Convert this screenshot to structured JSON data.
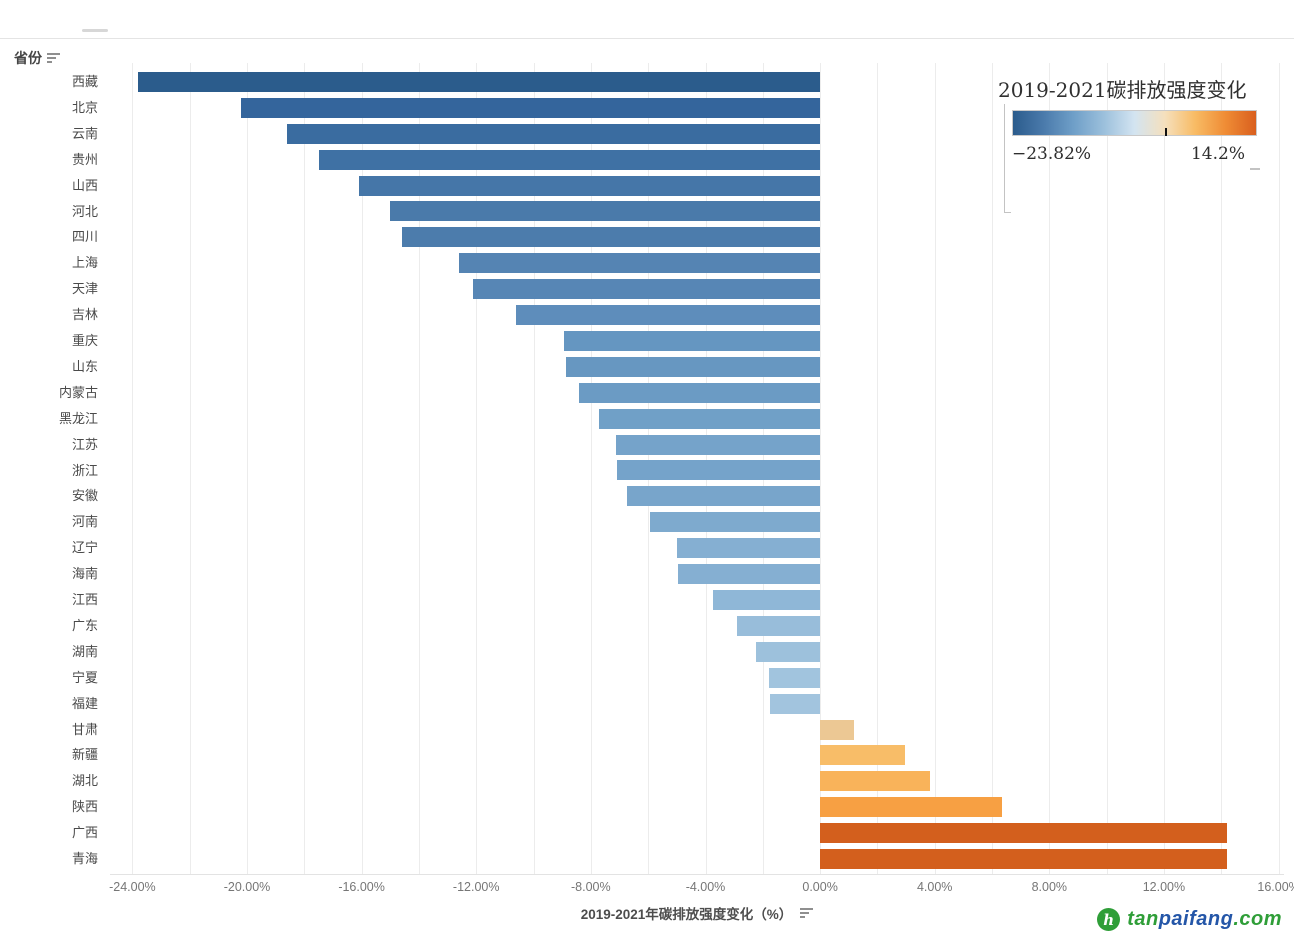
{
  "header": {
    "y_axis_title": "省份"
  },
  "legend": {
    "title": "2019-2021碳排放强度变化",
    "min_label": "−23.82%",
    "max_label": "14.2%",
    "min_value": -23.82,
    "max_value": 14.2,
    "zero_tick_fraction": 0.627,
    "gradient_stops": [
      "#2b5c8c",
      "#4a7aab",
      "#6f9fc8",
      "#9cc0dc",
      "#d3e4f1",
      "#f5e0bd",
      "#f8bb64",
      "#ef8c35",
      "#d95f1e"
    ]
  },
  "x_axis": {
    "title": "2019-2021年碳排放强度变化（%）",
    "ticks": [
      {
        "label": "-24.00%",
        "value": -24
      },
      {
        "label": "-20.00%",
        "value": -20
      },
      {
        "label": "-16.00%",
        "value": -16
      },
      {
        "label": "-12.00%",
        "value": -12
      },
      {
        "label": "-8.00%",
        "value": -8
      },
      {
        "label": "-4.00%",
        "value": -4
      },
      {
        "label": "0.00%",
        "value": 0
      },
      {
        "label": "4.00%",
        "value": 4
      },
      {
        "label": "8.00%",
        "value": 8
      },
      {
        "label": "12.00%",
        "value": 12
      },
      {
        "label": "16.00%",
        "value": 16
      }
    ],
    "grid_step": 2
  },
  "footer": {
    "brand_parts": [
      {
        "text": "tan",
        "color": "#2f9e38"
      },
      {
        "text": "paifang",
        "color": "#2456a8"
      },
      {
        "text": ".com",
        "color": "#2f9e38"
      }
    ],
    "brand_icon_glyph": "h"
  },
  "chart_data": {
    "type": "bar",
    "orientation": "horizontal",
    "title": "2019-2021碳排放强度变化",
    "xlabel": "2019-2021年碳排放强度变化（%）",
    "ylabel": "省份",
    "xlim": [
      -24.78,
      16.19
    ],
    "grid": true,
    "legend_position": "top-right",
    "categories": [
      "西藏",
      "北京",
      "云南",
      "贵州",
      "山西",
      "河北",
      "四川",
      "上海",
      "天津",
      "吉林",
      "重庆",
      "山东",
      "内蒙古",
      "黑龙江",
      "江苏",
      "浙江",
      "安徽",
      "河南",
      "辽宁",
      "海南",
      "江西",
      "广东",
      "湖南",
      "宁夏",
      "福建",
      "甘肃",
      "新疆",
      "湖北",
      "陕西",
      "广西",
      "青海"
    ],
    "values": [
      -23.82,
      -20.2,
      -18.6,
      -17.5,
      -16.1,
      -15.0,
      -14.6,
      -12.6,
      -12.1,
      -10.6,
      -8.93,
      -8.87,
      -8.4,
      -7.7,
      -7.12,
      -7.1,
      -6.74,
      -5.95,
      -4.98,
      -4.95,
      -3.75,
      -2.91,
      -2.25,
      -1.77,
      -1.74,
      1.18,
      2.98,
      3.85,
      6.35,
      14.19,
      14.2
    ],
    "colors": [
      "#2b5c8c",
      "#34659c",
      "#3a6ca0",
      "#3f71a4",
      "#4576a8",
      "#4a7aaa",
      "#4c7cac",
      "#5584b3",
      "#5786b5",
      "#5e8dbb",
      "#6596c1",
      "#6797c1",
      "#6b9bc4",
      "#70a0c7",
      "#75a3ca",
      "#75a3ca",
      "#78a5cb",
      "#7eaace",
      "#85afd2",
      "#85afd2",
      "#8fb7d7",
      "#98bdda",
      "#9dc1dc",
      "#a1c4de",
      "#a2c4de",
      "#ecc894",
      "#f8bd68",
      "#f9b35a",
      "#f7a043",
      "#d35f1d",
      "#d35f1d"
    ]
  }
}
